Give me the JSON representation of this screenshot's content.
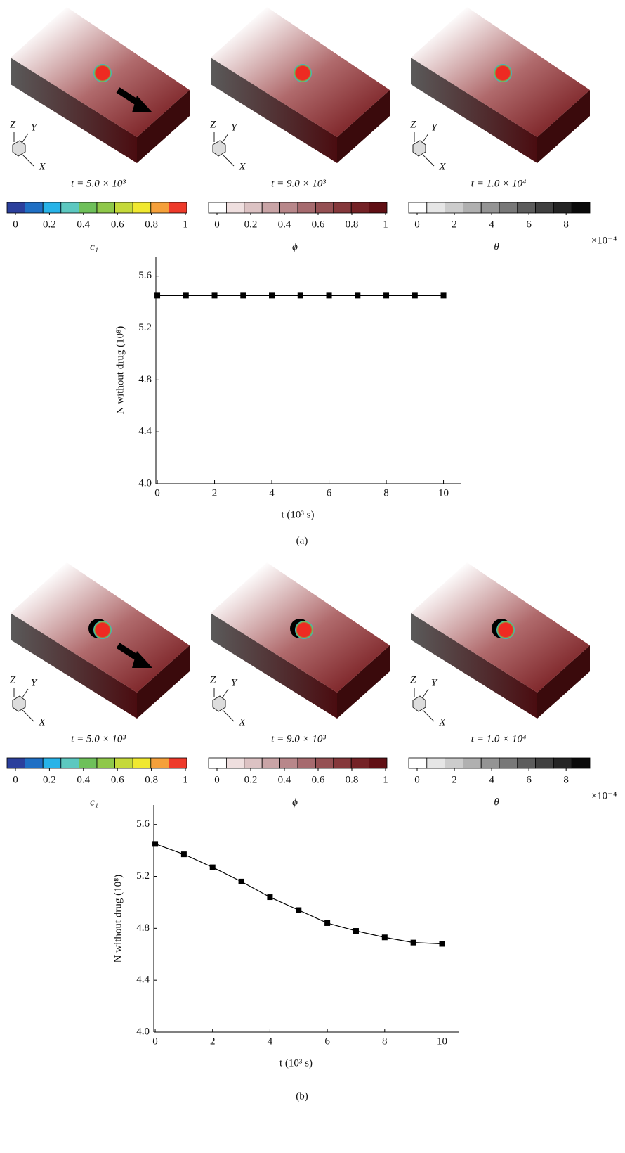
{
  "triad": [
    "Z",
    "Y",
    "X"
  ],
  "panels": [
    {
      "label": "(a)",
      "captions": [
        "t = 5.0 × 10³",
        "t = 9.0 × 10³",
        "t = 1.0 × 10⁴"
      ],
      "colorbars": [
        {
          "label": "c₁",
          "lim": [
            0,
            1
          ],
          "ticks": [
            0,
            0.2,
            0.4,
            0.6,
            0.8,
            1
          ],
          "colors": [
            "#2b3f9c",
            "#1f6fc4",
            "#27b3e8",
            "#5cc8c0",
            "#6ec05a",
            "#8fc84a",
            "#c5d93a",
            "#f0e830",
            "#f5a03a",
            "#ee3a2a"
          ]
        },
        {
          "label": "ϕ",
          "lim": [
            0,
            1
          ],
          "ticks": [
            0,
            0.2,
            0.4,
            0.6,
            0.8,
            1
          ],
          "colors": [
            "#ffffff",
            "#efdfdf",
            "#dcc2c3",
            "#c9a4a6",
            "#b8878a",
            "#a66a6e",
            "#955053",
            "#85383b",
            "#742226",
            "#600f14"
          ]
        },
        {
          "label": "θ",
          "lim": [
            0,
            9.2
          ],
          "ticks": [
            0,
            2,
            4,
            6,
            8
          ],
          "multiplier": "×10⁻⁴",
          "colors": [
            "#ffffff",
            "#e6e6e6",
            "#cccccc",
            "#b0b0b0",
            "#949494",
            "#787878",
            "#5c5c5c",
            "#404040",
            "#242424",
            "#0a0a0a"
          ]
        }
      ]
    },
    {
      "label": "(b)",
      "captions": [
        "t = 5.0 × 10³",
        "t = 9.0 × 10³",
        "t = 1.0 × 10⁴"
      ],
      "colorbars": [
        {
          "label": "c₁",
          "lim": [
            0,
            1
          ],
          "ticks": [
            0,
            0.2,
            0.4,
            0.6,
            0.8,
            1
          ],
          "colors": [
            "#2b3f9c",
            "#1f6fc4",
            "#27b3e8",
            "#5cc8c0",
            "#6ec05a",
            "#8fc84a",
            "#c5d93a",
            "#f0e830",
            "#f5a03a",
            "#ee3a2a"
          ]
        },
        {
          "label": "ϕ",
          "lim": [
            0,
            1
          ],
          "ticks": [
            0,
            0.2,
            0.4,
            0.6,
            0.8,
            1
          ],
          "colors": [
            "#ffffff",
            "#efdfdf",
            "#dcc2c3",
            "#c9a4a6",
            "#b8878a",
            "#a66a6e",
            "#955053",
            "#85383b",
            "#742226",
            "#600f14"
          ]
        },
        {
          "label": "θ",
          "lim": [
            0,
            9.2
          ],
          "ticks": [
            0,
            2,
            4,
            6,
            8
          ],
          "multiplier": "×10⁻⁴",
          "colors": [
            "#ffffff",
            "#e6e6e6",
            "#cccccc",
            "#b0b0b0",
            "#949494",
            "#787878",
            "#5c5c5c",
            "#404040",
            "#242424",
            "#0a0a0a"
          ]
        }
      ]
    }
  ],
  "chart_data": [
    {
      "type": "line",
      "x": [
        0,
        1,
        2,
        3,
        4,
        5,
        6,
        7,
        8,
        9,
        10
      ],
      "series": [
        {
          "color": "#000000",
          "values": [
            5.45,
            5.45,
            5.45,
            5.45,
            5.45,
            5.45,
            5.45,
            5.45,
            5.45,
            5.45,
            5.45
          ]
        }
      ],
      "xlim": [
        -0.05,
        10.6
      ],
      "xticks": [
        0,
        2,
        4,
        6,
        8,
        10
      ],
      "ylim": [
        4.0,
        5.75
      ],
      "yticks": [
        {
          "value": 4.0,
          "label": "4.0"
        },
        4.4,
        4.8,
        5.2,
        5.6
      ],
      "x_label": "t (10³ s)",
      "y_label": "N without drug (10⁸)"
    },
    {
      "type": "line",
      "x": [
        0,
        1,
        2,
        3,
        4,
        5,
        6,
        7,
        8,
        9,
        10
      ],
      "series": [
        {
          "color": "#000000",
          "values": [
            5.45,
            5.37,
            5.27,
            5.16,
            5.04,
            4.94,
            4.84,
            4.78,
            4.73,
            4.69,
            4.68
          ]
        }
      ],
      "xlim": [
        -0.05,
        10.6
      ],
      "xticks": [
        0,
        2,
        4,
        6,
        8,
        10
      ],
      "ylim": [
        4.0,
        5.75
      ],
      "yticks": [
        {
          "value": 4.0,
          "label": "4.0"
        },
        4.4,
        4.8,
        5.2,
        5.6
      ],
      "x_label": "t (10³ s)",
      "y_label": "N without drug (10⁸)"
    }
  ]
}
